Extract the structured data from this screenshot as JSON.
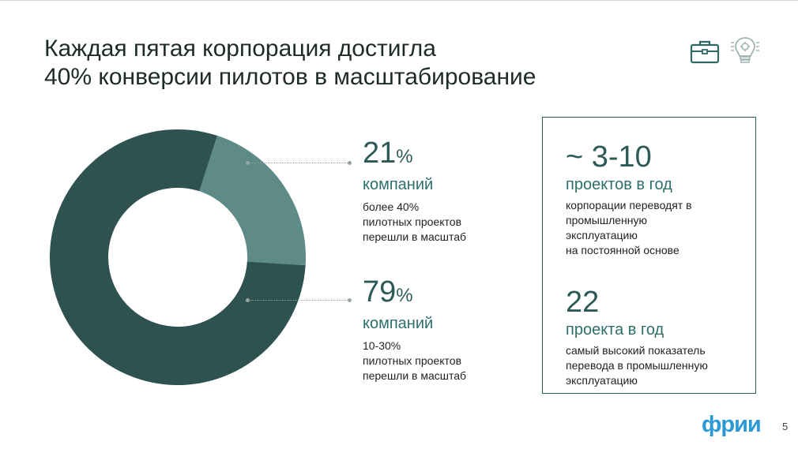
{
  "slide": {
    "title_lines": [
      "Каждая пятая корпорация достигла",
      "40% конверсии пилотов в масштабирование"
    ],
    "page_number": "5",
    "logo_text": "фрии",
    "icons": [
      "briefcase-icon",
      "lightbulb-gear-icon"
    ]
  },
  "chart_data": {
    "type": "pie",
    "donut": true,
    "categories": [
      "более 40% пилотных проектов перешли в масштаб",
      "10-30% пилотных проектов перешли в масштаб"
    ],
    "values": [
      21,
      79
    ],
    "colors": [
      "#5e8b87",
      "#2d524f"
    ]
  },
  "stats": [
    {
      "number": "21",
      "pct": "%",
      "unit": "компаний",
      "desc_lines": [
        "более 40%",
        "пилотных проектов",
        "перешли в масштаб"
      ]
    },
    {
      "number": "79",
      "pct": "%",
      "unit": "компаний",
      "desc_lines": [
        "10-30%",
        "пилотных проектов",
        "перешли в масштаб"
      ]
    }
  ],
  "facts": [
    {
      "number": "~ 3-10",
      "unit": "проектов в год",
      "desc_lines": [
        "корпорации переводят в",
        "промышленную",
        "эксплуатацию",
        "на постоянной основе"
      ]
    },
    {
      "number": "22",
      "unit": "проекта в год",
      "desc_lines": [
        "самый высокий показатель",
        "перевода в промышленную",
        "эксплуатацию"
      ]
    }
  ],
  "colors": {
    "accent_dark": "#2d524f",
    "accent_light": "#5e8b87",
    "logo_blue": "#2b9ad6"
  }
}
